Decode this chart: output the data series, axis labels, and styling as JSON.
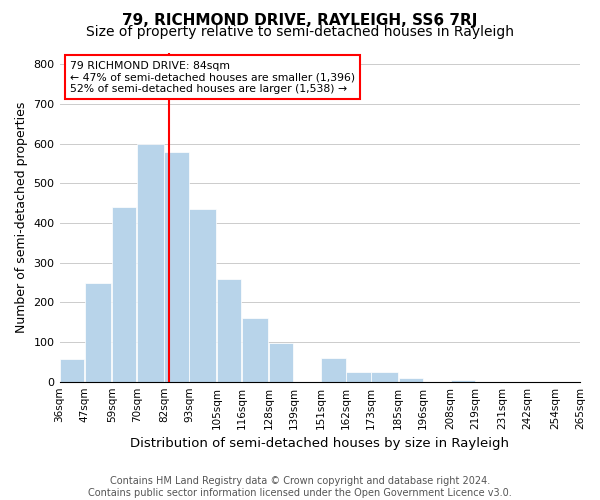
{
  "title": "79, RICHMOND DRIVE, RAYLEIGH, SS6 7RJ",
  "subtitle": "Size of property relative to semi-detached houses in Rayleigh",
  "xlabel": "Distribution of semi-detached houses by size in Rayleigh",
  "ylabel": "Number of semi-detached properties",
  "footer_line1": "Contains HM Land Registry data © Crown copyright and database right 2024.",
  "footer_line2": "Contains public sector information licensed under the Open Government Licence v3.0.",
  "bar_edges": [
    36,
    47,
    59,
    70,
    82,
    93,
    105,
    116,
    128,
    139,
    151,
    162,
    173,
    185,
    196,
    208,
    219,
    231,
    242,
    254,
    265
  ],
  "bar_heights": [
    57,
    250,
    440,
    600,
    580,
    435,
    258,
    160,
    97,
    0,
    60,
    25,
    25,
    10,
    0,
    5,
    0,
    0,
    0,
    0
  ],
  "tick_labels": [
    "36sqm",
    "47sqm",
    "59sqm",
    "70sqm",
    "82sqm",
    "93sqm",
    "105sqm",
    "116sqm",
    "128sqm",
    "139sqm",
    "151sqm",
    "162sqm",
    "173sqm",
    "185sqm",
    "196sqm",
    "208sqm",
    "219sqm",
    "231sqm",
    "242sqm",
    "254sqm",
    "265sqm"
  ],
  "bar_color": "#b8d4ea",
  "property_line_x": 84,
  "annotation_title": "79 RICHMOND DRIVE: 84sqm",
  "annotation_line1": "← 47% of semi-detached houses are smaller (1,396)",
  "annotation_line2": "52% of semi-detached houses are larger (1,538) →",
  "ylim": [
    0,
    830
  ],
  "yticks": [
    0,
    100,
    200,
    300,
    400,
    500,
    600,
    700,
    800
  ],
  "grid_color": "#cccccc",
  "background_color": "#ffffff",
  "title_fontsize": 11,
  "subtitle_fontsize": 10,
  "axis_label_fontsize": 9,
  "tick_fontsize": 7.5,
  "footer_fontsize": 7
}
